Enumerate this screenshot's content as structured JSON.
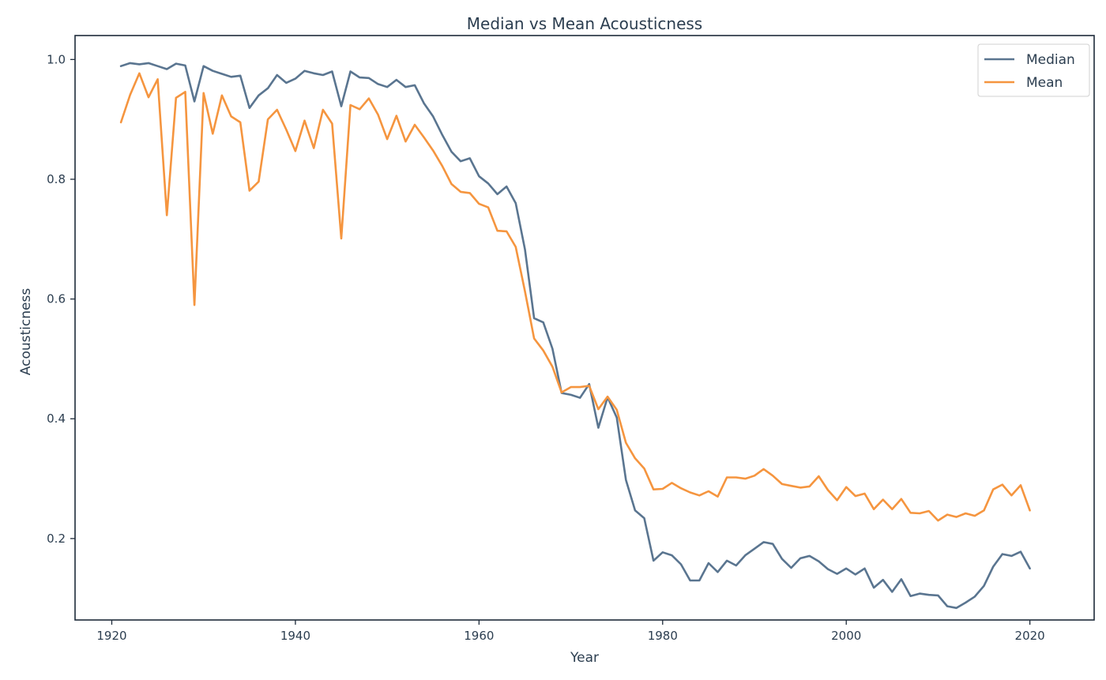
{
  "chart_data": {
    "type": "line",
    "title": "Median vs Mean Acousticness",
    "xlabel": "Year",
    "ylabel": "Acousticness",
    "xlim": [
      1916,
      2027
    ],
    "ylim": [
      0.064,
      1.04
    ],
    "xticks": [
      1920,
      1940,
      1960,
      1980,
      2000,
      2020
    ],
    "yticks": [
      0.2,
      0.4,
      0.6,
      0.8,
      1.0
    ],
    "ytick_labels": [
      "0.2",
      "0.4",
      "0.6",
      "0.8",
      "1.0"
    ],
    "grid": false,
    "legend_position": "top-right",
    "x": [
      1921,
      1922,
      1923,
      1924,
      1925,
      1926,
      1927,
      1928,
      1929,
      1930,
      1931,
      1932,
      1933,
      1934,
      1935,
      1936,
      1937,
      1938,
      1939,
      1940,
      1941,
      1942,
      1943,
      1944,
      1945,
      1946,
      1947,
      1948,
      1949,
      1950,
      1951,
      1952,
      1953,
      1954,
      1955,
      1956,
      1957,
      1958,
      1959,
      1960,
      1961,
      1962,
      1963,
      1964,
      1965,
      1966,
      1967,
      1968,
      1969,
      1970,
      1971,
      1972,
      1973,
      1974,
      1975,
      1976,
      1977,
      1978,
      1979,
      1980,
      1981,
      1982,
      1983,
      1984,
      1985,
      1986,
      1987,
      1988,
      1989,
      1990,
      1991,
      1992,
      1993,
      1994,
      1995,
      1996,
      1997,
      1998,
      1999,
      2000,
      2001,
      2002,
      2003,
      2004,
      2005,
      2006,
      2007,
      2008,
      2009,
      2010,
      2011,
      2012,
      2013,
      2014,
      2015,
      2016,
      2017,
      2018,
      2019,
      2020
    ],
    "series": [
      {
        "name": "Median",
        "color": "#5a7590",
        "values": [
          0.989,
          0.994,
          0.992,
          0.994,
          0.989,
          0.984,
          0.993,
          0.99,
          0.93,
          0.989,
          0.981,
          0.976,
          0.971,
          0.973,
          0.919,
          0.94,
          0.952,
          0.974,
          0.961,
          0.968,
          0.981,
          0.977,
          0.974,
          0.98,
          0.922,
          0.98,
          0.97,
          0.969,
          0.959,
          0.954,
          0.966,
          0.954,
          0.957,
          0.927,
          0.905,
          0.874,
          0.846,
          0.83,
          0.835,
          0.805,
          0.793,
          0.775,
          0.788,
          0.76,
          0.683,
          0.568,
          0.561,
          0.517,
          0.443,
          0.44,
          0.435,
          0.458,
          0.385,
          0.436,
          0.402,
          0.298,
          0.247,
          0.234,
          0.163,
          0.177,
          0.172,
          0.157,
          0.13,
          0.13,
          0.159,
          0.144,
          0.163,
          0.155,
          0.172,
          0.183,
          0.194,
          0.191,
          0.166,
          0.151,
          0.167,
          0.171,
          0.162,
          0.149,
          0.141,
          0.15,
          0.14,
          0.15,
          0.118,
          0.131,
          0.111,
          0.132,
          0.104,
          0.108,
          0.106,
          0.105,
          0.087,
          0.084,
          0.093,
          0.103,
          0.121,
          0.153,
          0.174,
          0.171,
          0.178,
          0.15
        ]
      },
      {
        "name": "Mean",
        "color": "#f5953f",
        "values": [
          0.895,
          0.941,
          0.977,
          0.937,
          0.967,
          0.74,
          0.936,
          0.946,
          0.59,
          0.944,
          0.876,
          0.94,
          0.905,
          0.895,
          0.781,
          0.796,
          0.9,
          0.916,
          0.883,
          0.847,
          0.898,
          0.852,
          0.916,
          0.893,
          0.701,
          0.924,
          0.917,
          0.935,
          0.908,
          0.867,
          0.906,
          0.863,
          0.891,
          0.87,
          0.848,
          0.822,
          0.792,
          0.779,
          0.777,
          0.759,
          0.753,
          0.714,
          0.713,
          0.687,
          0.613,
          0.534,
          0.514,
          0.487,
          0.444,
          0.453,
          0.453,
          0.455,
          0.416,
          0.437,
          0.415,
          0.36,
          0.334,
          0.317,
          0.282,
          0.283,
          0.293,
          0.284,
          0.277,
          0.272,
          0.279,
          0.27,
          0.302,
          0.302,
          0.3,
          0.305,
          0.316,
          0.305,
          0.291,
          0.288,
          0.285,
          0.287,
          0.304,
          0.281,
          0.264,
          0.286,
          0.271,
          0.275,
          0.249,
          0.265,
          0.249,
          0.266,
          0.243,
          0.242,
          0.246,
          0.23,
          0.24,
          0.236,
          0.242,
          0.238,
          0.247,
          0.282,
          0.29,
          0.272,
          0.289,
          0.247
        ]
      }
    ]
  }
}
